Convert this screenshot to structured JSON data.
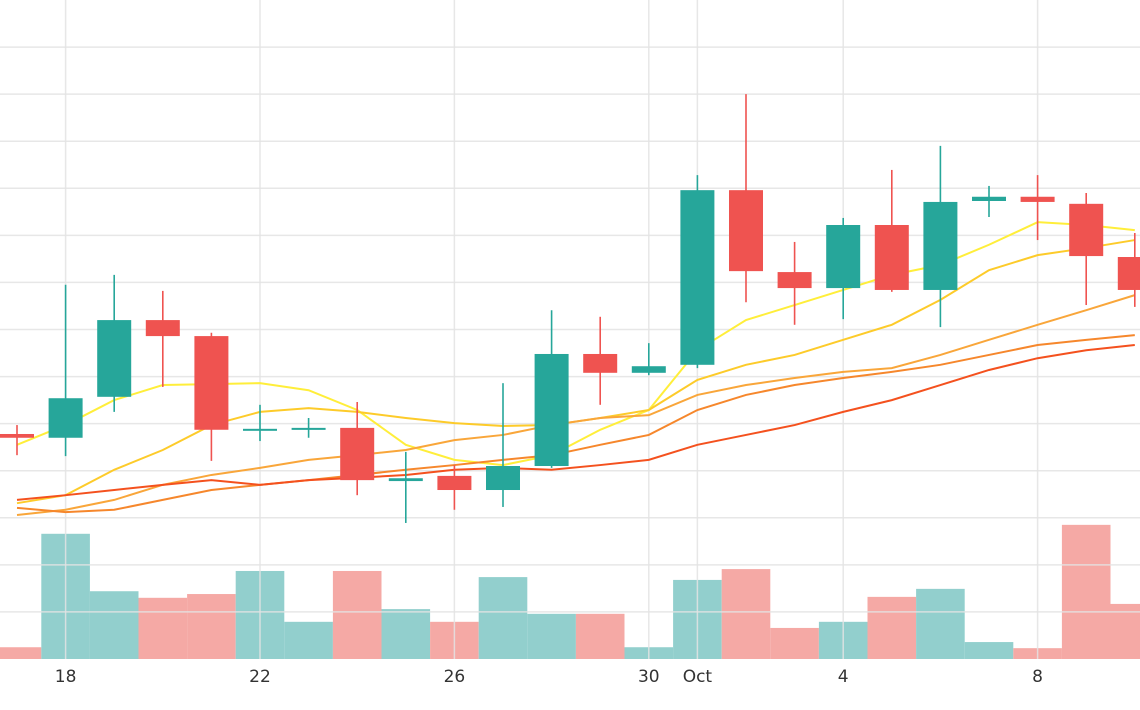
{
  "chart_data": {
    "type": "candlestick",
    "categories": [
      null,
      "18",
      null,
      null,
      null,
      "22",
      null,
      null,
      null,
      "26",
      null,
      null,
      null,
      "30",
      "Oct",
      null,
      null,
      "4",
      null,
      null,
      null,
      "8",
      null,
      null
    ],
    "open": [
      47.8,
      47.0,
      55.7,
      72.0,
      68.6,
      48.7,
      48.9,
      49.1,
      37.8,
      38.9,
      35.9,
      41.0,
      64.8,
      60.8,
      62.5,
      99.6,
      82.2,
      78.8,
      92.2,
      78.4,
      97.3,
      98.2,
      96.7,
      85.4
    ],
    "high": [
      49.7,
      79.5,
      81.6,
      78.2,
      69.3,
      54.0,
      51.2,
      54.6,
      44.0,
      41.2,
      58.6,
      74.1,
      72.7,
      67.1,
      102.8,
      120.0,
      88.6,
      93.7,
      103.9,
      109.0,
      100.5,
      102.8,
      99.0,
      90.5
    ],
    "low": [
      43.3,
      43.1,
      52.5,
      57.8,
      42.1,
      46.3,
      47.0,
      34.8,
      28.9,
      31.7,
      32.3,
      40.6,
      54.0,
      60.3,
      61.8,
      75.8,
      71.0,
      72.2,
      78.0,
      70.5,
      93.9,
      89.0,
      75.2,
      74.8
    ],
    "close": [
      47.0,
      55.4,
      72.0,
      68.6,
      48.7,
      48.9,
      49.1,
      38.0,
      38.4,
      35.9,
      41.0,
      64.8,
      60.8,
      62.2,
      99.6,
      82.4,
      78.8,
      92.2,
      78.4,
      97.1,
      98.2,
      97.1,
      85.6,
      78.4
    ],
    "volume": [
      2.5,
      26.6,
      14.4,
      13.0,
      13.8,
      18.7,
      7.9,
      18.7,
      10.6,
      7.9,
      17.4,
      9.6,
      9.6,
      2.5,
      16.8,
      19.1,
      6.6,
      7.9,
      13.2,
      14.9,
      3.6,
      2.3,
      28.5,
      11.7
    ],
    "up_color": "#26a69a",
    "down_color": "#ef5350",
    "volume_up_color": "#92cfcd",
    "volume_down_color": "#f5a9a5",
    "series": [
      {
        "color": "#ffee3a",
        "values": [
          45.5,
          49.7,
          55.0,
          58.2,
          58.4,
          58.6,
          57.1,
          52.9,
          45.5,
          42.3,
          41.2,
          43.3,
          48.7,
          52.9,
          65.6,
          72.0,
          75.2,
          78.4,
          81.6,
          83.7,
          88.0,
          92.8,
          92.2,
          91.1
        ]
      },
      {
        "color": "#fdcb2a",
        "values": [
          33.1,
          34.8,
          40.2,
          44.4,
          49.7,
          52.5,
          53.3,
          52.5,
          51.2,
          50.1,
          49.5,
          49.7,
          51.2,
          52.9,
          59.3,
          62.5,
          64.6,
          67.8,
          71.0,
          76.3,
          82.6,
          85.8,
          87.3,
          89.0
        ]
      },
      {
        "color": "#f9a63a",
        "values": [
          30.6,
          31.7,
          33.8,
          37.0,
          39.1,
          40.6,
          42.3,
          43.3,
          44.4,
          46.5,
          47.6,
          49.7,
          51.2,
          51.8,
          56.1,
          58.2,
          59.7,
          61.0,
          61.8,
          64.6,
          67.8,
          71.0,
          74.1,
          77.3
        ]
      },
      {
        "color": "#f6872c",
        "values": [
          32.1,
          31.2,
          31.7,
          33.8,
          35.9,
          37.0,
          38.0,
          39.1,
          40.2,
          41.2,
          42.3,
          43.3,
          45.5,
          47.6,
          52.9,
          56.1,
          58.2,
          59.7,
          61.0,
          62.5,
          64.6,
          66.7,
          67.8,
          68.8
        ]
      },
      {
        "color": "#f4511e",
        "values": [
          33.8,
          34.8,
          35.9,
          37.0,
          38.0,
          37.0,
          38.0,
          38.5,
          39.1,
          40.2,
          40.6,
          40.2,
          41.2,
          42.3,
          45.5,
          47.6,
          49.7,
          52.5,
          55.0,
          58.2,
          61.4,
          63.9,
          65.6,
          66.7
        ]
      }
    ],
    "ylim": [
      0,
      140
    ],
    "yticks": [
      10,
      20,
      30,
      40,
      50,
      60,
      70,
      80,
      90,
      100,
      110,
      120,
      130
    ],
    "grid": true
  }
}
